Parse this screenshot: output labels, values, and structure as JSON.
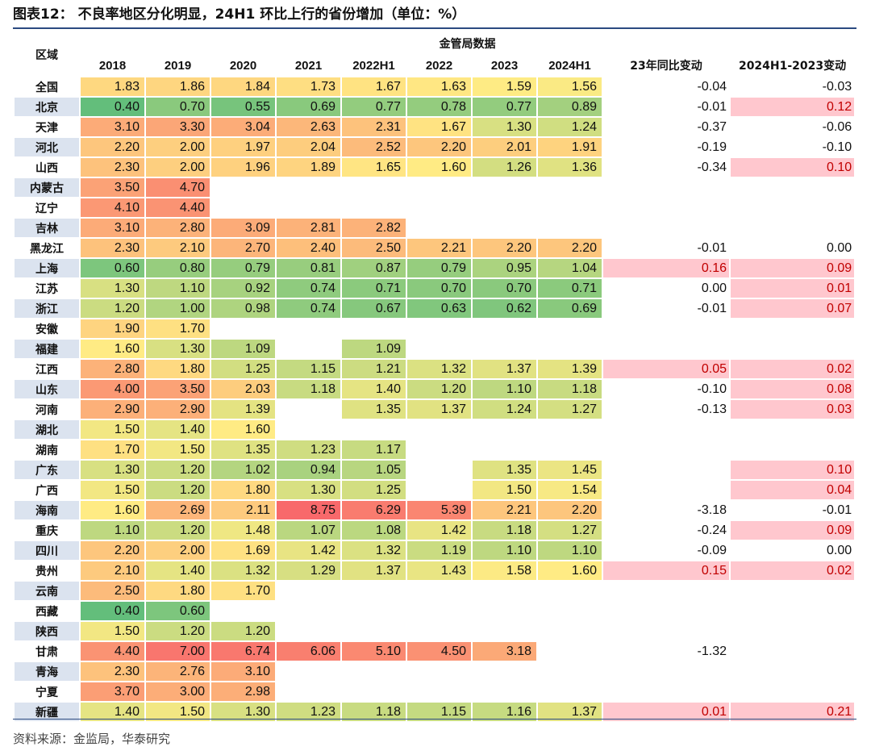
{
  "title": "图表12：  不良率地区分化明显，24H1 环比上行的省份增加（单位：%）",
  "source": "资料来源：金监局，华泰研究",
  "colors": {
    "positive_highlight": "#ffc7ce",
    "positive_text": "#c00000",
    "scale_low": "#63be7b",
    "scale_mid": "#ffeb84",
    "scale_high": "#f8696b",
    "rule": "#2b4a80"
  },
  "chart_data": {
    "type": "table",
    "title": "图表12：  不良率地区分化明显，24H1 环比上行的省份增加（单位：%）",
    "row_header": "区域",
    "group_header": "金管局数据",
    "columns": [
      "2018",
      "2019",
      "2020",
      "2021",
      "2022H1",
      "2022",
      "2023",
      "2024H1",
      "23年同比变动",
      "2024H1-2023变动"
    ],
    "rows": [
      {
        "region": "全国",
        "values": [
          "1.83",
          "1.86",
          "1.84",
          "1.73",
          "1.67",
          "1.63",
          "1.59",
          "1.56"
        ],
        "yoy": "-0.04",
        "h1chg": "-0.03"
      },
      {
        "region": "北京",
        "values": [
          "0.40",
          "0.70",
          "0.55",
          "0.69",
          "0.77",
          "0.78",
          "0.77",
          "0.89"
        ],
        "yoy": "-0.01",
        "h1chg": "0.12"
      },
      {
        "region": "天津",
        "values": [
          "3.10",
          "3.30",
          "3.04",
          "2.63",
          "2.31",
          "1.67",
          "1.30",
          "1.24"
        ],
        "yoy": "-0.37",
        "h1chg": "-0.06"
      },
      {
        "region": "河北",
        "values": [
          "2.20",
          "2.00",
          "1.97",
          "2.04",
          "2.52",
          "2.20",
          "2.01",
          "1.91"
        ],
        "yoy": "-0.19",
        "h1chg": "-0.10"
      },
      {
        "region": "山西",
        "values": [
          "2.30",
          "2.00",
          "1.96",
          "1.89",
          "1.65",
          "1.60",
          "1.26",
          "1.36"
        ],
        "yoy": "-0.34",
        "h1chg": "0.10"
      },
      {
        "region": "内蒙古",
        "values": [
          "3.50",
          "4.70",
          "",
          "",
          "",
          "",
          "",
          ""
        ],
        "yoy": "",
        "h1chg": ""
      },
      {
        "region": "辽宁",
        "values": [
          "4.10",
          "4.40",
          "",
          "",
          "",
          "",
          "",
          ""
        ],
        "yoy": "",
        "h1chg": ""
      },
      {
        "region": "吉林",
        "values": [
          "3.10",
          "2.80",
          "3.09",
          "2.81",
          "2.82",
          "",
          "",
          ""
        ],
        "yoy": "",
        "h1chg": ""
      },
      {
        "region": "黑龙江",
        "values": [
          "2.30",
          "2.10",
          "2.70",
          "2.40",
          "2.50",
          "2.21",
          "2.20",
          "2.20"
        ],
        "yoy": "-0.01",
        "h1chg": "0.00"
      },
      {
        "region": "上海",
        "values": [
          "0.60",
          "0.80",
          "0.79",
          "0.81",
          "0.87",
          "0.79",
          "0.95",
          "1.04"
        ],
        "yoy": "0.16",
        "h1chg": "0.09"
      },
      {
        "region": "江苏",
        "values": [
          "1.30",
          "1.10",
          "0.92",
          "0.74",
          "0.71",
          "0.70",
          "0.70",
          "0.71"
        ],
        "yoy": "0.00",
        "h1chg": "0.01"
      },
      {
        "region": "浙江",
        "values": [
          "1.20",
          "1.00",
          "0.98",
          "0.74",
          "0.67",
          "0.63",
          "0.62",
          "0.69"
        ],
        "yoy": "-0.01",
        "h1chg": "0.07"
      },
      {
        "region": "安徽",
        "values": [
          "1.90",
          "1.70",
          "",
          "",
          "",
          "",
          "",
          ""
        ],
        "yoy": "",
        "h1chg": ""
      },
      {
        "region": "福建",
        "values": [
          "1.60",
          "1.30",
          "1.09",
          "",
          "1.09",
          "",
          "",
          ""
        ],
        "yoy": "",
        "h1chg": ""
      },
      {
        "region": "江西",
        "values": [
          "2.80",
          "1.80",
          "1.25",
          "1.15",
          "1.21",
          "1.32",
          "1.37",
          "1.39"
        ],
        "yoy": "0.05",
        "h1chg": "0.02"
      },
      {
        "region": "山东",
        "values": [
          "4.00",
          "3.50",
          "2.03",
          "1.18",
          "1.40",
          "1.20",
          "1.10",
          "1.18"
        ],
        "yoy": "-0.10",
        "h1chg": "0.08"
      },
      {
        "region": "河南",
        "values": [
          "2.90",
          "2.90",
          "1.39",
          "",
          "1.35",
          "1.37",
          "1.24",
          "1.27"
        ],
        "yoy": "-0.13",
        "h1chg": "0.03"
      },
      {
        "region": "湖北",
        "values": [
          "1.50",
          "1.40",
          "1.60",
          "",
          "",
          "",
          "",
          ""
        ],
        "yoy": "",
        "h1chg": ""
      },
      {
        "region": "湖南",
        "values": [
          "1.70",
          "1.50",
          "1.35",
          "1.23",
          "1.17",
          "",
          "",
          ""
        ],
        "yoy": "",
        "h1chg": ""
      },
      {
        "region": "广东",
        "values": [
          "1.30",
          "1.20",
          "1.02",
          "0.94",
          "1.05",
          "",
          "1.35",
          "1.45"
        ],
        "yoy": "",
        "h1chg": "0.10"
      },
      {
        "region": "广西",
        "values": [
          "1.50",
          "1.20",
          "1.80",
          "1.30",
          "1.25",
          "",
          "1.50",
          "1.54"
        ],
        "yoy": "",
        "h1chg": "0.04"
      },
      {
        "region": "海南",
        "values": [
          "1.60",
          "2.69",
          "2.11",
          "8.75",
          "6.29",
          "5.39",
          "2.21",
          "2.20"
        ],
        "yoy": "-3.18",
        "h1chg": "-0.01"
      },
      {
        "region": "重庆",
        "values": [
          "1.10",
          "1.20",
          "1.48",
          "1.07",
          "1.08",
          "1.42",
          "1.18",
          "1.27"
        ],
        "yoy": "-0.24",
        "h1chg": "0.09"
      },
      {
        "region": "四川",
        "values": [
          "2.20",
          "2.00",
          "1.69",
          "1.42",
          "1.32",
          "1.19",
          "1.10",
          "1.10"
        ],
        "yoy": "-0.09",
        "h1chg": "0.00"
      },
      {
        "region": "贵州",
        "values": [
          "2.10",
          "1.40",
          "1.32",
          "1.29",
          "1.37",
          "1.43",
          "1.58",
          "1.60"
        ],
        "yoy": "0.15",
        "h1chg": "0.02"
      },
      {
        "region": "云南",
        "values": [
          "2.50",
          "1.80",
          "1.70",
          "",
          "",
          "",
          "",
          ""
        ],
        "yoy": "",
        "h1chg": ""
      },
      {
        "region": "西藏",
        "values": [
          "0.40",
          "0.60",
          "",
          "",
          "",
          "",
          "",
          ""
        ],
        "yoy": "",
        "h1chg": ""
      },
      {
        "region": "陕西",
        "values": [
          "1.50",
          "1.20",
          "1.20",
          "",
          "",
          "",
          "",
          ""
        ],
        "yoy": "",
        "h1chg": ""
      },
      {
        "region": "甘肃",
        "values": [
          "4.40",
          "7.00",
          "6.74",
          "6.06",
          "5.10",
          "4.50",
          "3.18",
          ""
        ],
        "yoy": "-1.32",
        "h1chg": ""
      },
      {
        "region": "青海",
        "values": [
          "2.30",
          "2.76",
          "3.10",
          "",
          "",
          "",
          "",
          ""
        ],
        "yoy": "",
        "h1chg": ""
      },
      {
        "region": "宁夏",
        "values": [
          "3.70",
          "3.00",
          "2.98",
          "",
          "",
          "",
          "",
          ""
        ],
        "yoy": "",
        "h1chg": ""
      },
      {
        "region": "新疆",
        "values": [
          "1.40",
          "1.50",
          "1.30",
          "1.23",
          "1.18",
          "1.15",
          "1.16",
          "1.37"
        ],
        "yoy": "0.01",
        "h1chg": "0.21"
      }
    ]
  }
}
